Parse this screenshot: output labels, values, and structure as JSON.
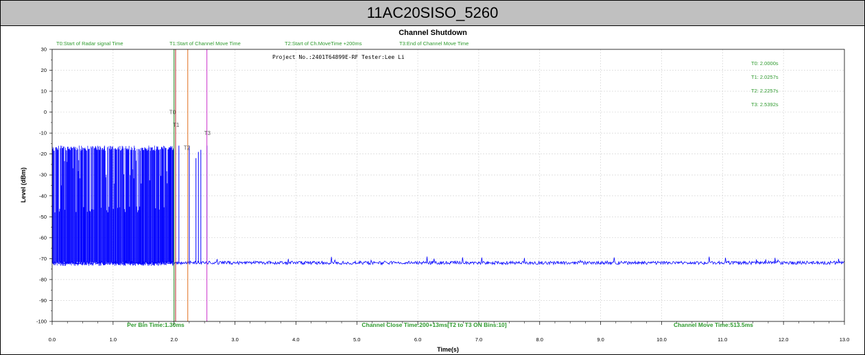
{
  "window_title": "11AC20SISO_5260",
  "colors": {
    "signal": "#0000ff",
    "annotation_green": "#2e9a2e",
    "t0_line": "#1e8a1e",
    "t1_line": "#b22222",
    "t2_line": "#e07020",
    "t3_line": "#cc33cc",
    "grid": "#cfcfcf",
    "title_bar": "#c0c0c0"
  },
  "legend": {
    "t0": "T0:Start of Radar signal Time",
    "t1": "T1:Start of Channel Move Time",
    "t2": "T2:Start of Ch.MoveTime +200ms",
    "t3": "T3:End of Channel Move Time"
  },
  "project_info": "Project No.:2401T64899E-RF  Tester:Lee Li",
  "readouts": {
    "t0": "T0: 2.0000s",
    "t1": "T1: 2.0257s",
    "t2": "T2: 2.2257s",
    "t3": "T3: 2.5392s"
  },
  "footer": {
    "per_bin": "Per Bin Time:1.30ms",
    "channel_close": "Channel Close Time:200+13ms[T2 to T3 ON Bins:10]",
    "channel_move": "Channel Move Time:513.5ms"
  },
  "chart_data": {
    "type": "line",
    "title": "Channel Shutdown",
    "xlabel": "Time(s)",
    "ylabel": "Level (dBm)",
    "xlim": [
      0.0,
      13.0
    ],
    "ylim": [
      -100,
      30
    ],
    "x_ticks": [
      "0.0",
      "1.0",
      "2.0",
      "3.0",
      "4.0",
      "5.0",
      "6.0",
      "7.0",
      "8.0",
      "9.0",
      "10.0",
      "11.0",
      "12.0",
      "13.0"
    ],
    "y_ticks": [
      "30",
      "20",
      "10",
      "0",
      "-10",
      "-20",
      "-30",
      "-40",
      "-50",
      "-60",
      "-70",
      "-80",
      "-90",
      "-100"
    ],
    "grid": true,
    "markers": [
      {
        "name": "T0",
        "x": 2.0,
        "color": "#1e8a1e"
      },
      {
        "name": "T1",
        "x": 2.0257,
        "color": "#b22222"
      },
      {
        "name": "T2",
        "x": 2.2257,
        "color": "#e07020"
      },
      {
        "name": "T3",
        "x": 2.5392,
        "color": "#cc33cc"
      }
    ],
    "series": [
      {
        "noise_floor_dbm": -72,
        "radar_burst": {
          "x_start": 0.0,
          "x_end": 2.0,
          "peak_dbm": -16
        },
        "post_burst_pulses": [
          {
            "x": 2.08,
            "y": -16
          },
          {
            "x": 2.25,
            "y": -16
          },
          {
            "x": 2.36,
            "y": -22
          },
          {
            "x": 2.4,
            "y": -19
          },
          {
            "x": 2.44,
            "y": -18
          },
          {
            "x": 2.54,
            "y": -16
          }
        ]
      }
    ]
  }
}
